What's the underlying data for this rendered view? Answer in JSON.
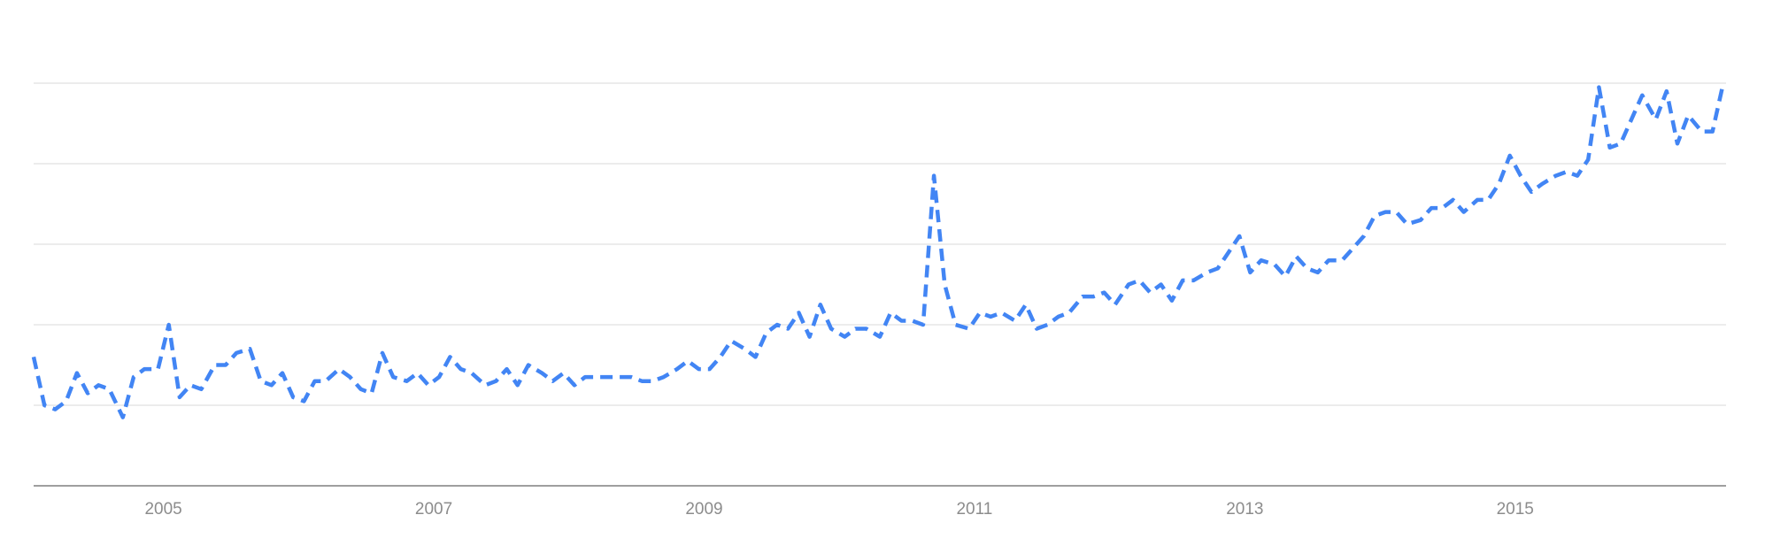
{
  "chart_data": {
    "type": "line",
    "title": "",
    "xlabel": "",
    "ylabel": "",
    "x_tick_labels": [
      "2005",
      "2007",
      "2009",
      "2011",
      "2013",
      "2015"
    ],
    "x_ticks": [
      2005,
      2007,
      2009,
      2011,
      2013,
      2015
    ],
    "xlim": [
      2004.04,
      2016.56
    ],
    "ylim": [
      0,
      100
    ],
    "y_gridlines": [
      20,
      40,
      60,
      80,
      100
    ],
    "grid": true,
    "y_tick_labels_shown": false,
    "legend": "none",
    "colors": {
      "series": "#4285f4",
      "grid": "#e6e6e6",
      "axis": "#9e9e9e",
      "tick_text": "#8c8c8c"
    },
    "series": [
      {
        "line_style": "dashed",
        "points": [
          [
            2004.04,
            32
          ],
          [
            2004.12,
            20
          ],
          [
            2004.2,
            19
          ],
          [
            2004.28,
            21
          ],
          [
            2004.36,
            28
          ],
          [
            2004.44,
            23
          ],
          [
            2004.52,
            25
          ],
          [
            2004.6,
            24
          ],
          [
            2004.7,
            17
          ],
          [
            2004.78,
            27
          ],
          [
            2004.86,
            29
          ],
          [
            2004.96,
            29
          ],
          [
            2005.04,
            40
          ],
          [
            2005.12,
            22
          ],
          [
            2005.2,
            25
          ],
          [
            2005.28,
            24
          ],
          [
            2005.38,
            30
          ],
          [
            2005.46,
            30
          ],
          [
            2005.54,
            33
          ],
          [
            2005.64,
            34
          ],
          [
            2005.72,
            26
          ],
          [
            2005.8,
            25
          ],
          [
            2005.88,
            28
          ],
          [
            2005.96,
            22
          ],
          [
            2006.04,
            21
          ],
          [
            2006.12,
            26
          ],
          [
            2006.2,
            26
          ],
          [
            2006.3,
            29
          ],
          [
            2006.38,
            27
          ],
          [
            2006.46,
            24
          ],
          [
            2006.54,
            23
          ],
          [
            2006.62,
            33
          ],
          [
            2006.7,
            27
          ],
          [
            2006.8,
            26
          ],
          [
            2006.88,
            28
          ],
          [
            2006.96,
            25
          ],
          [
            2007.04,
            27
          ],
          [
            2007.12,
            32
          ],
          [
            2007.2,
            29
          ],
          [
            2007.28,
            28
          ],
          [
            2007.38,
            25
          ],
          [
            2007.46,
            26
          ],
          [
            2007.54,
            29
          ],
          [
            2007.62,
            25
          ],
          [
            2007.7,
            30
          ],
          [
            2007.8,
            28
          ],
          [
            2007.88,
            26
          ],
          [
            2007.96,
            28
          ],
          [
            2008.04,
            25
          ],
          [
            2008.12,
            27
          ],
          [
            2008.2,
            27
          ],
          [
            2008.3,
            27
          ],
          [
            2008.38,
            27
          ],
          [
            2008.46,
            27
          ],
          [
            2008.54,
            26
          ],
          [
            2008.62,
            26
          ],
          [
            2008.7,
            27
          ],
          [
            2008.8,
            29
          ],
          [
            2008.88,
            31
          ],
          [
            2008.96,
            29
          ],
          [
            2009.04,
            29
          ],
          [
            2009.12,
            32
          ],
          [
            2009.2,
            36
          ],
          [
            2009.3,
            34
          ],
          [
            2009.38,
            32
          ],
          [
            2009.46,
            38
          ],
          [
            2009.54,
            40
          ],
          [
            2009.62,
            39
          ],
          [
            2009.7,
            43
          ],
          [
            2009.78,
            37
          ],
          [
            2009.86,
            45
          ],
          [
            2009.94,
            39
          ],
          [
            2010.04,
            37
          ],
          [
            2010.12,
            39
          ],
          [
            2010.2,
            39
          ],
          [
            2010.3,
            37
          ],
          [
            2010.38,
            43
          ],
          [
            2010.46,
            41
          ],
          [
            2010.54,
            41
          ],
          [
            2010.62,
            40
          ],
          [
            2010.7,
            77
          ],
          [
            2010.78,
            50
          ],
          [
            2010.86,
            40
          ],
          [
            2010.96,
            39
          ],
          [
            2011.04,
            43
          ],
          [
            2011.12,
            42
          ],
          [
            2011.2,
            43
          ],
          [
            2011.3,
            41
          ],
          [
            2011.38,
            45
          ],
          [
            2011.46,
            39
          ],
          [
            2011.54,
            40
          ],
          [
            2011.62,
            42
          ],
          [
            2011.7,
            43
          ],
          [
            2011.8,
            47
          ],
          [
            2011.88,
            47
          ],
          [
            2011.96,
            48
          ],
          [
            2012.04,
            45
          ],
          [
            2012.14,
            50
          ],
          [
            2012.22,
            51
          ],
          [
            2012.3,
            48
          ],
          [
            2012.38,
            50
          ],
          [
            2012.46,
            46
          ],
          [
            2012.54,
            51
          ],
          [
            2012.62,
            51
          ],
          [
            2012.72,
            53
          ],
          [
            2012.8,
            54
          ],
          [
            2012.88,
            58
          ],
          [
            2012.96,
            62
          ],
          [
            2013.04,
            53
          ],
          [
            2013.12,
            56
          ],
          [
            2013.22,
            55
          ],
          [
            2013.3,
            52
          ],
          [
            2013.38,
            57
          ],
          [
            2013.46,
            54
          ],
          [
            2013.54,
            53
          ],
          [
            2013.62,
            56
          ],
          [
            2013.72,
            56
          ],
          [
            2013.8,
            59
          ],
          [
            2013.88,
            62
          ],
          [
            2013.96,
            67
          ],
          [
            2014.04,
            68
          ],
          [
            2014.12,
            68
          ],
          [
            2014.2,
            65
          ],
          [
            2014.3,
            66
          ],
          [
            2014.38,
            69
          ],
          [
            2014.46,
            69
          ],
          [
            2014.54,
            71
          ],
          [
            2014.62,
            68
          ],
          [
            2014.72,
            71
          ],
          [
            2014.8,
            71
          ],
          [
            2014.88,
            75
          ],
          [
            2014.96,
            82
          ],
          [
            2015.04,
            77
          ],
          [
            2015.12,
            73
          ],
          [
            2015.2,
            75
          ],
          [
            2015.3,
            77
          ],
          [
            2015.38,
            78
          ],
          [
            2015.46,
            77
          ],
          [
            2015.54,
            81
          ],
          [
            2015.62,
            99
          ],
          [
            2015.7,
            84
          ],
          [
            2015.78,
            85
          ],
          [
            2015.86,
            91
          ],
          [
            2015.94,
            97
          ],
          [
            2016.04,
            91
          ],
          [
            2016.12,
            98
          ],
          [
            2016.2,
            85
          ],
          [
            2016.28,
            92
          ],
          [
            2016.38,
            88
          ],
          [
            2016.46,
            88
          ],
          [
            2016.54,
            100
          ]
        ]
      }
    ]
  }
}
